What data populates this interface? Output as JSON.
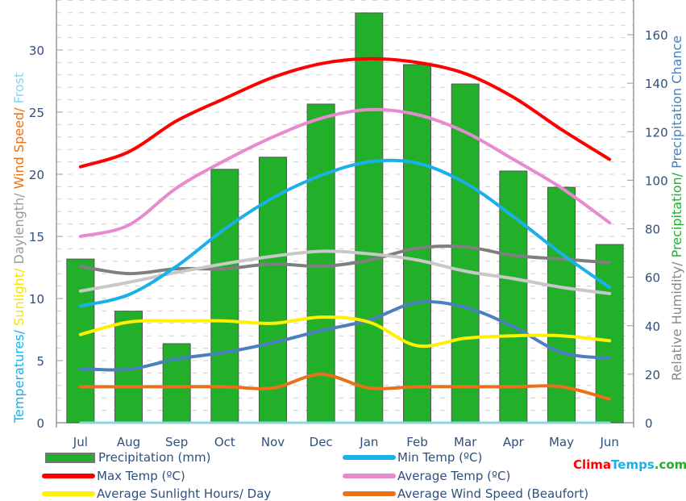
{
  "chart_data": {
    "type": "bar+line",
    "categories": [
      "Jul",
      "Aug",
      "Sep",
      "Oct",
      "Nov",
      "Dec",
      "Jan",
      "Feb",
      "Mar",
      "Apr",
      "May",
      "Jun"
    ],
    "left_axis": {
      "range": [
        0,
        33
      ],
      "ticks": [
        0,
        5,
        10,
        15,
        20,
        25,
        30
      ],
      "label_parts": [
        {
          "text": "Temperatures/ ",
          "color": "#1ab0e8"
        },
        {
          "text": "Sunlight/ ",
          "color": "#f5e400"
        },
        {
          "text": "Daylength/ ",
          "color": "#999999"
        },
        {
          "text": "Wind Speed/ ",
          "color": "#e8711a"
        },
        {
          "text": "Frost",
          "color": "#8fd3e8"
        }
      ]
    },
    "right_axis": {
      "range": [
        0,
        173
      ],
      "ticks": [
        0,
        20,
        40,
        60,
        80,
        100,
        120,
        140,
        160
      ],
      "label_parts": [
        {
          "text": "Relative Humidity/ ",
          "color": "#888888"
        },
        {
          "text": "Precipitation/ ",
          "color": "#22b02a"
        },
        {
          "text": "Precipitation Chance",
          "color": "#4a7fb5"
        }
      ]
    },
    "bars": {
      "name": "Precipitation (mm)",
      "axis": "right",
      "color": "#22b02a",
      "values": [
        67.5,
        46,
        32.6,
        104.5,
        109.5,
        131.4,
        169,
        147.7,
        139.7,
        103.8,
        97.1,
        73.5
      ]
    },
    "series": [
      {
        "name": "Relative Humidity",
        "axis": "right",
        "color": "#7f7f7f",
        "values": [
          64.5,
          61.5,
          63.5,
          63.5,
          65.5,
          64.5,
          67,
          72,
          72.5,
          69,
          67.5,
          66
        ]
      },
      {
        "name": "Precipitation Chance",
        "axis": "right",
        "color": "#4a7fc0",
        "values": [
          22.3,
          22,
          26.3,
          29,
          33,
          38,
          42.3,
          49.6,
          47.6,
          39.6,
          29,
          26.6
        ]
      },
      {
        "name": "Daylength",
        "axis": "left",
        "color": "#c8c8c8",
        "values": [
          10.6,
          11.3,
          12.1,
          12.8,
          13.4,
          13.8,
          13.6,
          13.1,
          12.2,
          11.6,
          10.9,
          10.4
        ]
      },
      {
        "name": "Frost",
        "axis": "left",
        "color": "#8fd3e8",
        "values": [
          0,
          0,
          0,
          0,
          0,
          0,
          0,
          0,
          0,
          0,
          0,
          0
        ]
      },
      {
        "name": "Average Wind Speed (Beaufort)",
        "axis": "left",
        "color": "#e8711a",
        "values": [
          2.9,
          2.9,
          2.9,
          2.9,
          2.8,
          3.9,
          2.8,
          2.9,
          2.9,
          2.9,
          2.9,
          1.9
        ]
      },
      {
        "name": "Average Sunlight Hours/ Day",
        "axis": "left",
        "color": "#ffef00",
        "values": [
          7.1,
          8.1,
          8.2,
          8.2,
          8.0,
          8.5,
          8.1,
          6.2,
          6.8,
          7.0,
          7.0,
          6.6
        ]
      },
      {
        "name": "Min Temp (ºC)",
        "axis": "left",
        "color": "#1ab0e8",
        "values": [
          9.4,
          10.3,
          12.6,
          15.6,
          18.1,
          19.9,
          21.0,
          20.9,
          19.3,
          16.6,
          13.6,
          10.9
        ]
      },
      {
        "name": "Average Temp (ºC)",
        "axis": "left",
        "color": "#e88ad0",
        "values": [
          15.0,
          15.9,
          18.9,
          21.1,
          23.0,
          24.5,
          25.2,
          24.8,
          23.4,
          21.2,
          18.9,
          16.1
        ]
      },
      {
        "name": "Max Temp (ºC)",
        "axis": "left",
        "color": "#ff0000",
        "values": [
          20.6,
          21.8,
          24.3,
          26.1,
          27.8,
          28.9,
          29.3,
          29.0,
          28.1,
          26.2,
          23.6,
          21.2
        ]
      }
    ],
    "legend": [
      {
        "label": "Precipitation (mm)",
        "color": "#22b02a",
        "kind": "box"
      },
      {
        "label": "Min Temp (ºC)",
        "color": "#1ab0e8",
        "kind": "line"
      },
      {
        "label": "Max Temp (ºC)",
        "color": "#ff0000",
        "kind": "line"
      },
      {
        "label": "Average Temp (ºC)",
        "color": "#e88ad0",
        "kind": "line"
      },
      {
        "label": "Average Sunlight Hours/ Day",
        "color": "#ffef00",
        "kind": "line"
      },
      {
        "label": "Average Wind Speed (Beaufort)",
        "color": "#e8711a",
        "kind": "line"
      }
    ],
    "legend_placement": "bottom",
    "grid": true
  },
  "brand": {
    "part1": "Clima",
    "part2": "Temps",
    ".com": ".com",
    "part3": ".com"
  }
}
